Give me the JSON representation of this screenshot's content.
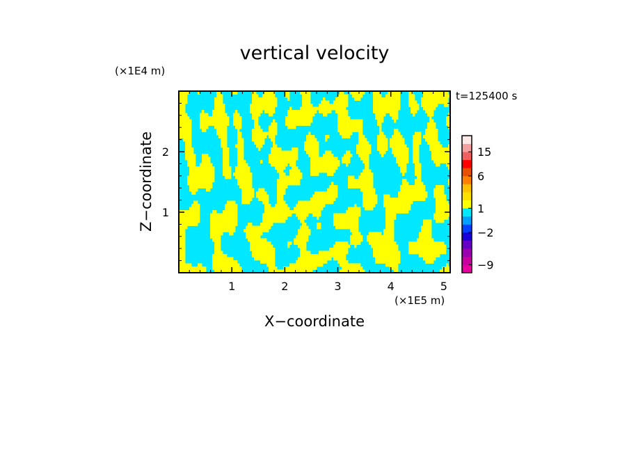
{
  "chart_data": {
    "type": "heatmap",
    "title": "vertical velocity",
    "xlabel": "X−coordinate",
    "ylabel": "Z−coordinate",
    "x_unit": "(×1E5 m)",
    "y_unit": "(×1E4 m)",
    "time_label": "t=125400 s",
    "xlim": [
      0,
      5.12
    ],
    "ylim": [
      0,
      3.0
    ],
    "xticks": [
      1,
      2,
      3,
      4,
      5
    ],
    "yticks": [
      1,
      2
    ],
    "colorbar": {
      "levels": [
        -12,
        -9,
        -6,
        -4,
        -3,
        -2,
        -1,
        0,
        1,
        2,
        3,
        4,
        6,
        9,
        12,
        15,
        18,
        25
      ],
      "colors": [
        "#e8009e",
        "#c8009e",
        "#9a00b0",
        "#6600c4",
        "#1a00d8",
        "#0040ff",
        "#00a0ff",
        "#00e8ff",
        "#ffff00",
        "#ffe000",
        "#ffc000",
        "#ff8000",
        "#e85000",
        "#ff0000",
        "#f06060",
        "#f4a0a0",
        "#fde8e8"
      ],
      "tick_labels": [
        {
          "value": -9,
          "label": "−9"
        },
        {
          "value": -2,
          "label": "−2"
        },
        {
          "value": 1,
          "label": "1"
        },
        {
          "value": 6,
          "label": "6"
        },
        {
          "value": 15,
          "label": "15"
        }
      ]
    },
    "field_colors": {
      "negative": "#00e8ff",
      "positive": "#ffff00"
    }
  }
}
